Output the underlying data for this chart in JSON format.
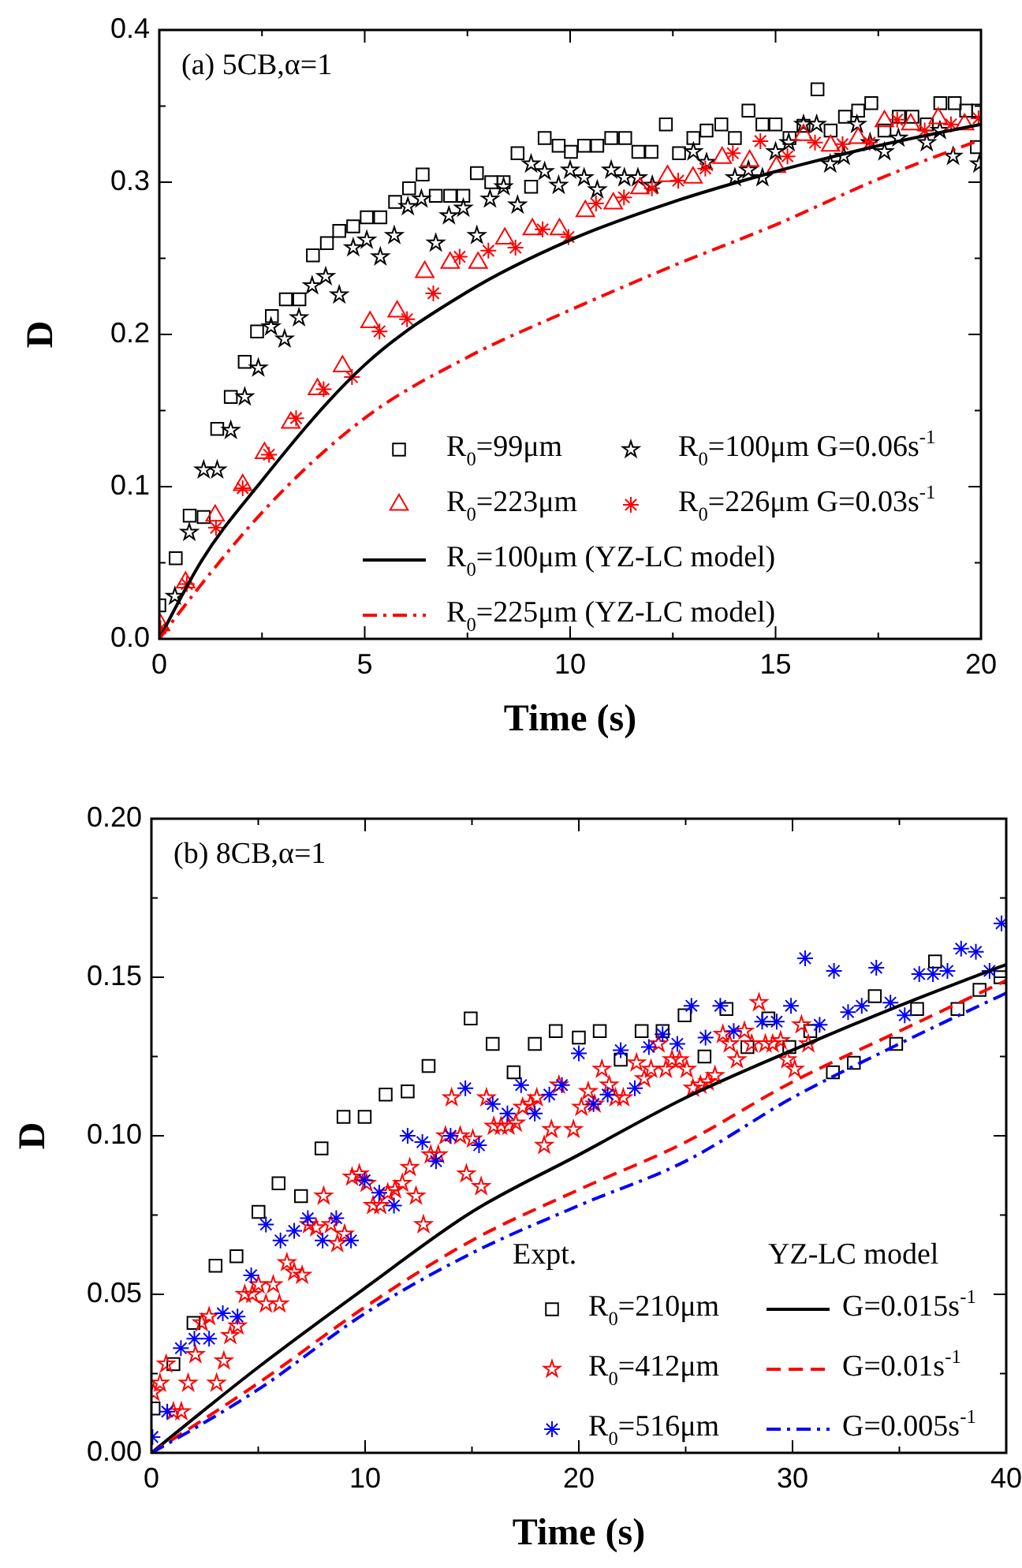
{
  "chart_data": [
    {
      "type": "scatter",
      "title": "(a) 5CB,α=1",
      "xlabel": "Time (s)",
      "ylabel": "D",
      "legend": "bottom right",
      "xlim": [
        0,
        20
      ],
      "ylim": [
        0,
        0.4
      ],
      "xticks": [
        0,
        {
          "value": 2.5,
          "label": null
        },
        5,
        {
          "value": 7.5,
          "label": null
        },
        10,
        {
          "value": 12.5,
          "label": null
        },
        15,
        {
          "value": 17.5,
          "label": null
        },
        20
      ],
      "yticks": [
        {
          "value": 0,
          "label": "0.0"
        },
        {
          "value": 0.05,
          "label": null
        },
        0.1,
        {
          "value": 0.15,
          "label": null
        },
        0.2,
        {
          "value": 0.25,
          "label": null
        },
        0.3,
        {
          "value": 0.35,
          "label": null
        },
        0.4
      ],
      "series": [
        {
          "name": "R$_{0}$=99μm",
          "type": "scatter",
          "marker": "square",
          "color": "#000000",
          "x": [
            0,
            0.4,
            0.74,
            1.08,
            1.41,
            1.74,
            2.08,
            2.38,
            2.74,
            3.08,
            3.41,
            3.74,
            4.08,
            4.38,
            4.72,
            5.05,
            5.38,
            5.74,
            6.08,
            6.41,
            6.73,
            7.08,
            7.4,
            7.73,
            8.08,
            8.38,
            8.72,
            9.05,
            9.38,
            9.72,
            10.02,
            10.34,
            10.66,
            11,
            11.34,
            11.66,
            11.98,
            12.33,
            12.65,
            13,
            13.32,
            13.68,
            14.01,
            14.34,
            14.68,
            15,
            15.34,
            15.68,
            16.02,
            16.34,
            16.69,
            17.01,
            17.33,
            17.65,
            18,
            18.33,
            18.68,
            19.01,
            19.36,
            19.64,
            19.93,
            19.9
          ],
          "values": [
            0.022,
            0.053,
            0.081,
            0.08,
            0.138,
            0.159,
            0.182,
            0.202,
            0.212,
            0.223,
            0.223,
            0.252,
            0.26,
            0.268,
            0.271,
            0.277,
            0.277,
            0.287,
            0.296,
            0.305,
            0.291,
            0.291,
            0.291,
            0.306,
            0.3,
            0.3,
            0.319,
            0.297,
            0.329,
            0.324,
            0.32,
            0.324,
            0.324,
            0.329,
            0.329,
            0.32,
            0.32,
            0.338,
            0.319,
            0.329,
            0.334,
            0.338,
            0.329,
            0.347,
            0.338,
            0.338,
            0.329,
            0.337,
            0.361,
            0.334,
            0.343,
            0.347,
            0.352,
            0.334,
            0.343,
            0.343,
            0.338,
            0.352,
            0.352,
            0.347,
            0.347,
            0.323
          ]
        },
        {
          "name": "R$_{0}$=100μm G=0.06s$^{-1}$",
          "type": "scatter",
          "marker": "star",
          "color": "#000000",
          "x": [
            0.38,
            0.73,
            1.08,
            1.41,
            1.74,
            2.08,
            2.41,
            2.72,
            3.05,
            3.4,
            3.72,
            4.05,
            4.38,
            4.72,
            5.05,
            5.38,
            5.72,
            6.05,
            6.38,
            6.73,
            7.05,
            7.4,
            7.73,
            8.05,
            8.38,
            8.72,
            9.05,
            9.38,
            9.72,
            10,
            10.34,
            10.66,
            11,
            11.32,
            11.65,
            12,
            13,
            13.32,
            14.01,
            14.34,
            14.68,
            15,
            15.32,
            15.68,
            16,
            16.33,
            16.66,
            16.98,
            17.3,
            17.65,
            17.99,
            18.68,
            19,
            19.32,
            19.96
          ],
          "values": [
            0.028,
            0.07,
            0.111,
            0.111,
            0.137,
            0.159,
            0.178,
            0.205,
            0.197,
            0.211,
            0.232,
            0.238,
            0.226,
            0.257,
            0.262,
            0.251,
            0.265,
            0.284,
            0.289,
            0.26,
            0.278,
            0.283,
            0.265,
            0.289,
            0.297,
            0.285,
            0.312,
            0.307,
            0.298,
            0.308,
            0.303,
            0.295,
            0.308,
            0.303,
            0.303,
            0.298,
            0.32,
            0.313,
            0.303,
            0.308,
            0.303,
            0.32,
            0.326,
            0.338,
            0.338,
            0.312,
            0.317,
            0.338,
            0.326,
            0.32,
            0.329,
            0.326,
            0.334,
            0.317,
            0.312
          ]
        },
        {
          "name": "R$_{0}$=223μm",
          "type": "scatter",
          "marker": "triangle",
          "color": "#ff0000",
          "x": [
            0.03,
            0.64,
            1.36,
            2.03,
            2.56,
            3.2,
            3.85,
            4.46,
            5.13,
            5.79,
            6.46,
            7.08,
            7.76,
            8.41,
            9.08,
            9.74,
            10.37,
            11.05,
            11.7,
            12.37,
            12.99,
            13.7,
            14.37,
            15.02,
            15.68,
            16.34,
            17.01,
            17.65,
            18.29,
            18.96,
            19.6
          ],
          "values": [
            0.009,
            0.037,
            0.081,
            0.101,
            0.122,
            0.142,
            0.164,
            0.179,
            0.208,
            0.215,
            0.241,
            0.247,
            0.247,
            0.263,
            0.269,
            0.269,
            0.281,
            0.286,
            0.296,
            0.304,
            0.303,
            0.316,
            0.314,
            0.31,
            0.331,
            0.324,
            0.329,
            0.34,
            0.338,
            0.342,
            0.338
          ]
        },
        {
          "name": "R$_{0}$=226μm G=0.03s$^{-1}$",
          "type": "scatter",
          "marker": "cross",
          "color": "#ff0000",
          "x": [
            0.03,
            0.67,
            1.38,
            2.03,
            2.67,
            3.33,
            4,
            4.69,
            5.36,
            6.03,
            6.67,
            7.31,
            8.01,
            8.67,
            9.33,
            9.96,
            10.63,
            11.31,
            11.99,
            12.63,
            13.29,
            13.96,
            14.63,
            15.29,
            15.96,
            16.63,
            17.29,
            17.96,
            18.63,
            19.27,
            19.94
          ],
          "values": [
            0.007,
            0.036,
            0.073,
            0.099,
            0.121,
            0.145,
            0.164,
            0.172,
            0.202,
            0.21,
            0.227,
            0.251,
            0.255,
            0.257,
            0.269,
            0.264,
            0.286,
            0.29,
            0.296,
            0.301,
            0.309,
            0.319,
            0.327,
            0.317,
            0.326,
            0.325,
            0.326,
            0.341,
            0.334,
            0.338,
            0.342
          ]
        },
        {
          "name": "R$_{0}$=100μm (YZ-LC model)",
          "type": "line",
          "line_style": "solid",
          "marker": "none",
          "color": "#000000",
          "x": [
            0,
            1,
            2.5,
            5,
            7.5,
            10,
            12.5,
            15,
            17.5,
            20
          ],
          "values": [
            0,
            0.05,
            0.104,
            0.18,
            0.228,
            0.262,
            0.287,
            0.307,
            0.324,
            0.338
          ]
        },
        {
          "name": "R$_{0}$=225μm (YZ-LC model)",
          "type": "line",
          "line_style": "dashdot",
          "marker": "none",
          "color": "#ff0000",
          "x": [
            0,
            1,
            2.5,
            5,
            7.5,
            10,
            12.5,
            15,
            17.5,
            20
          ],
          "values": [
            0,
            0.035,
            0.083,
            0.145,
            0.185,
            0.216,
            0.245,
            0.272,
            0.302,
            0.328
          ]
        }
      ]
    },
    {
      "type": "scatter",
      "title": "(b) 8CB,α=1",
      "xlabel": "Time (s)",
      "ylabel": "D",
      "legend": "bottom right",
      "annotations": [
        "Expt.",
        "YZ-LC model"
      ],
      "xlim": [
        0,
        40
      ],
      "ylim": [
        0,
        0.2
      ],
      "xticks": [
        0,
        {
          "value": 5,
          "label": null
        },
        10,
        {
          "value": 15,
          "label": null
        },
        20,
        {
          "value": 25,
          "label": null
        },
        30,
        {
          "value": 35,
          "label": null
        },
        40
      ],
      "yticks": [
        {
          "value": 0,
          "label": "0.00"
        },
        {
          "value": 0.025,
          "label": null
        },
        {
          "value": 0.05,
          "label": "0.05"
        },
        {
          "value": 0.075,
          "label": null
        },
        {
          "value": 0.1,
          "label": "0.10"
        },
        {
          "value": 0.125,
          "label": null
        },
        {
          "value": 0.15,
          "label": "0.15"
        },
        {
          "value": 0.175,
          "label": null
        },
        {
          "value": 0.2,
          "label": "0.20"
        }
      ],
      "series": [
        {
          "name": "R$_{0}$=210μm",
          "type": "scatter",
          "marker": "square",
          "color": "#000000",
          "x": [
            0.1,
            1.03,
            1.97,
            3,
            3.98,
            5.01,
            5.95,
            7,
            7.96,
            8.99,
            9.98,
            10.96,
            11.99,
            12.97,
            14.94,
            15.97,
            16.95,
            17.94,
            18.92,
            20,
            20.98,
            21.96,
            22.94,
            23.92,
            24.95,
            25.88,
            26.91,
            27.89,
            28.87,
            29.85,
            30.83,
            31.89,
            32.87,
            33.85,
            34.85,
            35.83,
            36.67,
            37.72,
            38.75,
            39.73
          ],
          "values": [
            0.014,
            0.028,
            0.041,
            0.059,
            0.062,
            0.076,
            0.085,
            0.081,
            0.096,
            0.106,
            0.106,
            0.113,
            0.114,
            0.122,
            0.137,
            0.129,
            0.12,
            0.129,
            0.133,
            0.131,
            0.133,
            0.124,
            0.133,
            0.133,
            0.138,
            0.125,
            0.14,
            0.128,
            0.137,
            0.128,
            0.133,
            0.12,
            0.123,
            0.144,
            0.129,
            0.14,
            0.155,
            0.14,
            0.146,
            0.15
          ]
        },
        {
          "name": "R$_{0}$=412μm",
          "type": "scatter",
          "marker": "star",
          "color": "#ff0000",
          "x": [
            0.1,
            0.4,
            0.69,
            1.03,
            1.4,
            1.72,
            2.06,
            2.36,
            2.7,
            3.05,
            3.39,
            3.69,
            4.03,
            4.37,
            4.72,
            5.01,
            5.36,
            5.7,
            5.99,
            6.34,
            6.68,
            7.05,
            7.37,
            7.71,
            8.06,
            8.4,
            8.7,
            9.04,
            9.39,
            9.73,
            10.07,
            10.37,
            10.71,
            11.06,
            11.4,
            11.74,
            12.09,
            12.38,
            12.73,
            13.07,
            13.42,
            13.76,
            14.05,
            14.45,
            14.74,
            15.04,
            15.43,
            15.68,
            16.02,
            16.36,
            16.71,
            17.05,
            17.37,
            17.74,
            18.03,
            18.38,
            18.72,
            19.07,
            19.75,
            20.12,
            20.44,
            20.74,
            21.08,
            21.42,
            21.72,
            22.08,
            22.7,
            23.06,
            23.38,
            23.73,
            24.07,
            24.36,
            24.71,
            25.05,
            25.34,
            25.69,
            26.03,
            26.37,
            26.74,
            27.06,
            27.4,
            27.75,
            28.09,
            28.43,
            28.73,
            29.07,
            29.44,
            29.75,
            30.1,
            30.42,
            30.74
          ],
          "values": [
            0.019,
            0.022,
            0.028,
            0.013,
            0.013,
            0.022,
            0.031,
            0.041,
            0.043,
            0.022,
            0.029,
            0.037,
            0.04,
            0.05,
            0.05,
            0.053,
            0.047,
            0.053,
            0.047,
            0.06,
            0.057,
            0.056,
            0.072,
            0.071,
            0.081,
            0.072,
            0.066,
            0.069,
            0.087,
            0.088,
            0.085,
            0.078,
            0.078,
            0.082,
            0.083,
            0.085,
            0.09,
            0.081,
            0.072,
            0.094,
            0.094,
            0.1,
            0.112,
            0.1,
            0.088,
            0.099,
            0.084,
            0.112,
            0.103,
            0.103,
            0.103,
            0.104,
            0.109,
            0.11,
            0.112,
            0.097,
            0.102,
            0.116,
            0.102,
            0.109,
            0.114,
            0.11,
            0.121,
            0.116,
            0.112,
            0.112,
            0.123,
            0.118,
            0.121,
            0.129,
            0.121,
            0.124,
            0.124,
            0.121,
            0.115,
            0.116,
            0.117,
            0.119,
            0.132,
            0.129,
            0.124,
            0.133,
            0.129,
            0.142,
            0.129,
            0.129,
            0.13,
            0.124,
            0.121,
            0.135,
            0.129
          ]
        },
        {
          "name": "R$_{0}$=516μm",
          "type": "scatter",
          "marker": "cross",
          "color": "#0000ff",
          "x": [
            0.05,
            0.74,
            1.38,
            2.01,
            2.7,
            3.34,
            4.03,
            4.67,
            5.36,
            6.04,
            6.68,
            7.32,
            8.01,
            8.65,
            9.34,
            9.98,
            10.66,
            11.35,
            11.99,
            12.68,
            13.32,
            14,
            14.69,
            15.33,
            15.97,
            16.66,
            17.3,
            17.94,
            18.62,
            19.21,
            20,
            20.69,
            21.35,
            21.96,
            22.62,
            23.28,
            23.92,
            24.61,
            25.27,
            25.93,
            26.62,
            27.25,
            28.58,
            29.26,
            29.93,
            30.59,
            31.27,
            31.94,
            32.6,
            33.24,
            33.92,
            34.58,
            35.25,
            35.93,
            36.57,
            37.25,
            37.89,
            38.58,
            39.22,
            39.78
          ],
          "values": [
            0.005,
            0.013,
            0.033,
            0.036,
            0.036,
            0.044,
            0.043,
            0.056,
            0.072,
            0.067,
            0.07,
            0.074,
            0.067,
            0.074,
            0.067,
            0.086,
            0.082,
            0.078,
            0.1,
            0.098,
            0.092,
            0.1,
            0.115,
            0.097,
            0.11,
            0.107,
            0.116,
            0.107,
            0.113,
            0.116,
            0.126,
            0.11,
            0.113,
            0.127,
            0.115,
            0.128,
            0.132,
            0.129,
            0.141,
            0.131,
            0.141,
            0.133,
            0.136,
            0.136,
            0.141,
            0.156,
            0.135,
            0.152,
            0.139,
            0.141,
            0.153,
            0.142,
            0.138,
            0.151,
            0.151,
            0.152,
            0.159,
            0.158,
            0.152,
            0.167
          ]
        },
        {
          "name": "G=0.015s$^{-1}$",
          "type": "line",
          "line_style": "solid",
          "marker": "none",
          "color": "#000000",
          "x": [
            0,
            5,
            10,
            15,
            20,
            25,
            30,
            35,
            40
          ],
          "values": [
            0,
            0.027,
            0.052,
            0.076,
            0.094,
            0.112,
            0.127,
            0.141,
            0.154
          ]
        },
        {
          "name": "G=0.01s$^{-1}$",
          "type": "line",
          "line_style": "dashed",
          "marker": "none",
          "color": "#ff0000",
          "x": [
            0,
            5,
            10,
            15,
            20,
            25,
            30,
            35,
            40
          ],
          "values": [
            0,
            0.022,
            0.046,
            0.067,
            0.083,
            0.098,
            0.117,
            0.133,
            0.149
          ]
        },
        {
          "name": "G=0.005s$^{-1}$",
          "type": "line",
          "line_style": "dashdot",
          "marker": "none",
          "color": "#0000ff",
          "x": [
            0,
            5,
            10,
            15,
            20,
            25,
            30,
            35,
            40
          ],
          "values": [
            0,
            0.02,
            0.044,
            0.063,
            0.078,
            0.092,
            0.112,
            0.129,
            0.145
          ]
        }
      ]
    }
  ]
}
